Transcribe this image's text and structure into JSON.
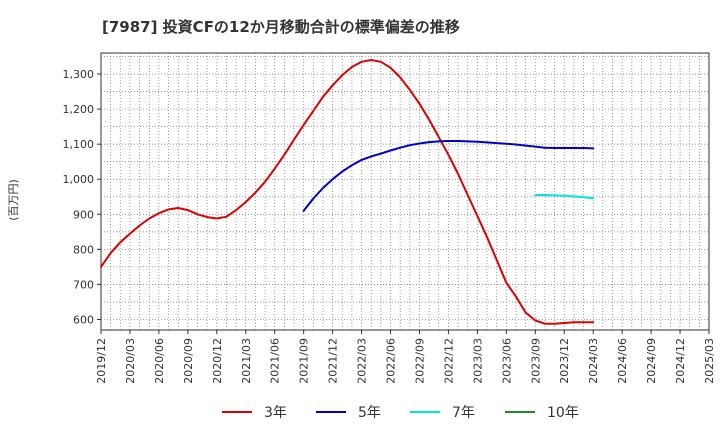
{
  "page": {
    "title": "[7987]  投資CFの12か月移動合計の標準偏差の推移"
  },
  "chart_data": {
    "type": "line",
    "title": "[7987]  投資CFの12か月移動合計の標準偏差の推移",
    "ylabel": "(百万円)",
    "xlabel": "",
    "ylim": [
      570,
      1360
    ],
    "yticks": [
      600,
      700,
      800,
      900,
      1000,
      1100,
      1200,
      1300
    ],
    "ytick_labels": [
      "600",
      "700",
      "800",
      "900",
      "1,000",
      "1,100",
      "1,200",
      "1,300"
    ],
    "xlim": [
      "2019-12",
      "2025-03"
    ],
    "xtick_labels": [
      "2019/12",
      "2020/03",
      "2020/06",
      "2020/09",
      "2020/12",
      "2021/03",
      "2021/06",
      "2021/09",
      "2021/12",
      "2022/03",
      "2022/06",
      "2022/09",
      "2022/12",
      "2023/03",
      "2023/06",
      "2023/09",
      "2023/12",
      "2024/03",
      "2024/06",
      "2024/09",
      "2024/12",
      "2025/03"
    ],
    "grid": true,
    "legend_position": "bottom",
    "series": [
      {
        "name": "3年",
        "color": "#dd0000",
        "x": [
          "2019-12",
          "2020-01",
          "2020-02",
          "2020-03",
          "2020-04",
          "2020-05",
          "2020-06",
          "2020-07",
          "2020-08",
          "2020-09",
          "2020-10",
          "2020-11",
          "2020-12",
          "2021-01",
          "2021-02",
          "2021-03",
          "2021-04",
          "2021-05",
          "2021-06",
          "2021-07",
          "2021-08",
          "2021-09",
          "2021-10",
          "2021-11",
          "2021-12",
          "2022-01",
          "2022-02",
          "2022-03",
          "2022-04",
          "2022-05",
          "2022-06",
          "2022-07",
          "2022-08",
          "2022-09",
          "2022-10",
          "2022-11",
          "2022-12",
          "2023-01",
          "2023-02",
          "2023-03",
          "2023-04",
          "2023-05",
          "2023-06",
          "2023-07",
          "2023-08",
          "2023-09",
          "2023-10",
          "2023-11",
          "2023-12",
          "2024-01",
          "2024-02",
          "2024-03"
        ],
        "values": [
          750,
          790,
          820,
          845,
          868,
          888,
          903,
          914,
          918,
          912,
          900,
          892,
          888,
          893,
          912,
          935,
          962,
          993,
          1030,
          1070,
          1113,
          1155,
          1195,
          1235,
          1268,
          1297,
          1320,
          1335,
          1340,
          1335,
          1318,
          1290,
          1255,
          1215,
          1170,
          1120,
          1070,
          1015,
          955,
          895,
          835,
          770,
          705,
          665,
          620,
          597,
          588,
          588,
          590,
          592,
          592,
          592
        ]
      },
      {
        "name": "5年",
        "color": "#0000cc",
        "x": [
          "2021-09",
          "2021-10",
          "2021-11",
          "2021-12",
          "2022-01",
          "2022-02",
          "2022-03",
          "2022-04",
          "2022-05",
          "2022-06",
          "2022-07",
          "2022-08",
          "2022-09",
          "2022-10",
          "2022-11",
          "2022-12",
          "2023-01",
          "2023-02",
          "2023-03",
          "2023-04",
          "2023-05",
          "2023-06",
          "2023-07",
          "2023-08",
          "2023-09",
          "2023-10",
          "2023-11",
          "2023-12",
          "2024-01",
          "2024-02",
          "2024-03"
        ],
        "values": [
          910,
          945,
          975,
          1000,
          1022,
          1040,
          1055,
          1065,
          1073,
          1082,
          1090,
          1097,
          1102,
          1106,
          1108,
          1109,
          1109,
          1108,
          1107,
          1105,
          1103,
          1101,
          1099,
          1096,
          1093,
          1090,
          1089,
          1089,
          1089,
          1089,
          1088
        ]
      },
      {
        "name": "7年",
        "color": "#00e5e5",
        "x": [
          "2023-09",
          "2023-10",
          "2023-11",
          "2023-12",
          "2024-01",
          "2024-02",
          "2024-03"
        ],
        "values": [
          955,
          955,
          954,
          953,
          951,
          949,
          946
        ]
      },
      {
        "name": "10年",
        "color": "#228b22",
        "x": [],
        "values": []
      }
    ]
  }
}
